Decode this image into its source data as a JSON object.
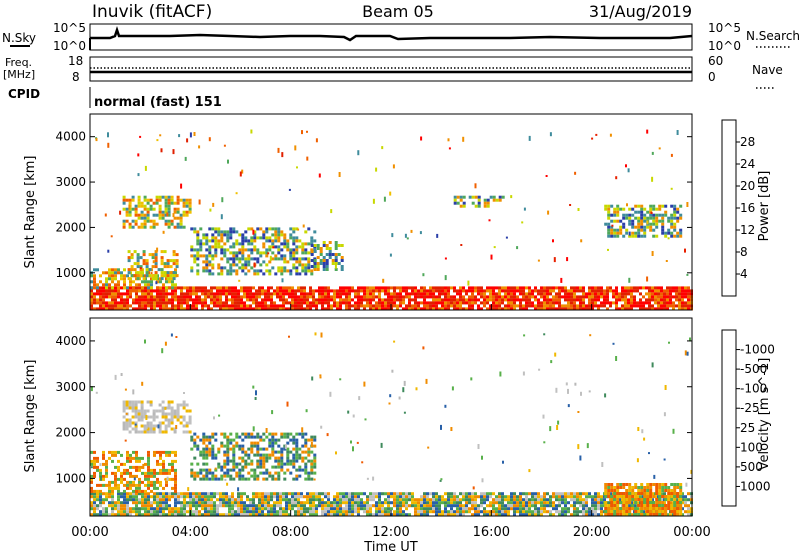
{
  "header": {
    "station": "Inuvik (fitACF)",
    "beam": "Beam 05",
    "date": "31/Aug/2019"
  },
  "top_panels": {
    "nsky_label": "N.Sky",
    "nsearch_label": "N.Search",
    "nsky_ticks": [
      "10^5",
      "10^0"
    ],
    "freq_label_1": "Freq.",
    "freq_label_2": "[MHz]",
    "freq_ticks": [
      "18",
      "8"
    ],
    "nave_label": "Nave",
    "nave_ticks": [
      "60",
      "0"
    ],
    "cpid_label": "CPID",
    "cpid_value": "normal (fast) 151"
  },
  "chart_data": [
    {
      "type": "heatmap",
      "name": "power",
      "ylabel": "Slant Range [km]",
      "yticks": [
        1000,
        2000,
        3000,
        4000
      ],
      "ylim": [
        180,
        4500
      ],
      "xlim": [
        0,
        24
      ],
      "colorbar_label": "Power [dB]",
      "colorbar_ticks": [
        "4",
        "8",
        "12",
        "16",
        "20",
        "24",
        "28"
      ],
      "colorbar_colors": [
        "#0018f8",
        "#2a3ea8",
        "#3f8c9c",
        "#4fa85a",
        "#c8d800",
        "#f0c000",
        "#f09000",
        "#f06000",
        "#e02000",
        "#ff0000"
      ],
      "regions": [
        {
          "t0": 0.0,
          "t1": 24.0,
          "r0": 180,
          "r1": 700,
          "level": "high"
        },
        {
          "t0": 0.0,
          "t1": 3.4,
          "r0": 700,
          "r1": 1100,
          "level": "mid"
        },
        {
          "t0": 1.5,
          "t1": 3.5,
          "r0": 900,
          "r1": 1500,
          "level": "mid"
        },
        {
          "t0": 1.3,
          "t1": 4.0,
          "r0": 2000,
          "r1": 2700,
          "level": "mid"
        },
        {
          "t0": 4.0,
          "t1": 9.0,
          "r0": 1000,
          "r1": 2000,
          "level": "low"
        },
        {
          "t0": 8.8,
          "t1": 10.0,
          "r0": 1100,
          "r1": 1700,
          "level": "low"
        },
        {
          "t0": 14.5,
          "t1": 16.5,
          "r0": 2500,
          "r1": 2700,
          "level": "low"
        },
        {
          "t0": 20.5,
          "t1": 23.6,
          "r0": 1800,
          "r1": 2500,
          "level": "low"
        }
      ]
    },
    {
      "type": "heatmap",
      "name": "velocity",
      "xlabel": "Time UT",
      "ylabel": "Slant Range [km]",
      "xticks": [
        "00:00",
        "04:00",
        "08:00",
        "12:00",
        "16:00",
        "20:00",
        "00:00"
      ],
      "yticks": [
        1000,
        2000,
        3000,
        4000
      ],
      "ylim": [
        180,
        4500
      ],
      "xlim": [
        0,
        24
      ],
      "colorbar_label": "Velocity [m s^-1]",
      "colorbar_ticks": [
        "1000",
        "500",
        "100",
        "25",
        "-25",
        "-100",
        "-500",
        "-1000"
      ],
      "colorbar_colors": [
        "#1030c8",
        "#2860a8",
        "#3f8a5c",
        "#58b04a",
        "#c0c0c0",
        "#f0b800",
        "#f08c00",
        "#f05a00",
        "#f00000"
      ],
      "regions": [
        {
          "t0": 0.0,
          "t1": 24.0,
          "r0": 180,
          "r1": 700,
          "level": "green-orange"
        },
        {
          "t0": 0.0,
          "t1": 3.4,
          "r0": 700,
          "r1": 1600,
          "level": "orange"
        },
        {
          "t0": 1.3,
          "t1": 4.0,
          "r0": 2000,
          "r1": 2700,
          "level": "grey"
        },
        {
          "t0": 4.0,
          "t1": 9.0,
          "r0": 1000,
          "r1": 2000,
          "level": "green"
        },
        {
          "t0": 20.5,
          "t1": 23.6,
          "r0": 200,
          "r1": 900,
          "level": "orange"
        }
      ]
    }
  ]
}
